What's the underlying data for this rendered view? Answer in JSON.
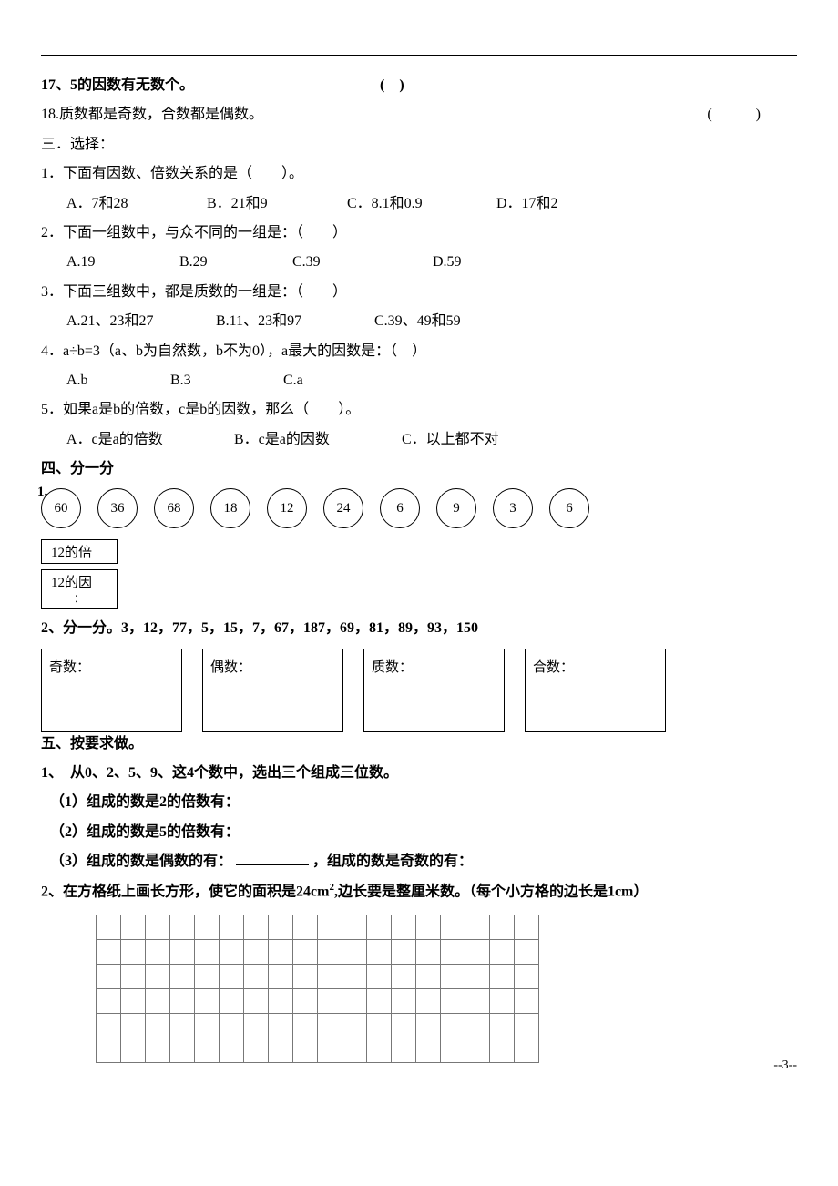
{
  "q17": {
    "text": "17、5的因数有无数个。",
    "paren": "(　)"
  },
  "q18": {
    "text": "18.质数都是奇数，合数都是偶数。",
    "paren": "(　　　)"
  },
  "section3": {
    "title": "三．选择："
  },
  "s3q1": {
    "stem": "1．下面有因数、倍数关系的是（　　）。",
    "a": "A．7和28",
    "b": "B．21和9",
    "c": "C．8.1和0.9",
    "d": "D．17和2"
  },
  "s3q2": {
    "stem": "2．下面一组数中，与众不同的一组是：（　　）",
    "a": "A.19",
    "b": "B.29",
    "c": "C.39",
    "d": "D.59"
  },
  "s3q3": {
    "stem": "3．下面三组数中，都是质数的一组是：（　　）",
    "a": "A.21、23和27",
    "b": "B.11、23和97",
    "c": "C.39、49和59"
  },
  "s3q4": {
    "stem": "4．a÷b=3（a、b为自然数，b不为0），a最大的因数是：（　）",
    "a": "A.b",
    "b": "B.3",
    "c": "C.a"
  },
  "s3q5": {
    "stem": "5．如果a是b的倍数，c是b的因数，那么（　　）。",
    "a": "A．c是a的倍数",
    "b": "B．c是a的因数",
    "c": "C．以上都不对"
  },
  "section4": {
    "title": "四、分一分"
  },
  "s4q1": {
    "num": "1.",
    "circles": [
      "60",
      "36",
      "68",
      "18",
      "12",
      "24",
      "6",
      "9",
      "3",
      "6"
    ],
    "box1_line1": "12的倍",
    "box1_line2": "",
    "box2_line1": "12的因",
    "box2_line2": "："
  },
  "s4q2": {
    "stem": "2、分一分。3，12，77，5，15，7，67，187，69，81，89，93，150",
    "b1": "奇数：",
    "b2": "偶数：",
    "b3": "质数：",
    "b4": "合数："
  },
  "section5": {
    "title": "五、按要求做。"
  },
  "s5q1": {
    "stem": "1、　从0、2、5、9、这4个数中，选出三个组成三位数。",
    "p1": "（1）组成的数是2的倍数有：",
    "p2": "（2）组成的数是5的倍数有：",
    "p3a": "（3）组成的数是偶数的有：",
    "p3b": "，组成的数是奇数的有："
  },
  "s5q2": {
    "stem_a": "2、在方格纸上画长方形，使它的面积是24cm",
    "sup": "2",
    "stem_b": ",边长要是整厘米数。（每个小方格的边长是1cm）",
    "grid_cols": 18,
    "grid_rows": 6
  },
  "tiny_mark": "",
  "page_num": "--3--"
}
